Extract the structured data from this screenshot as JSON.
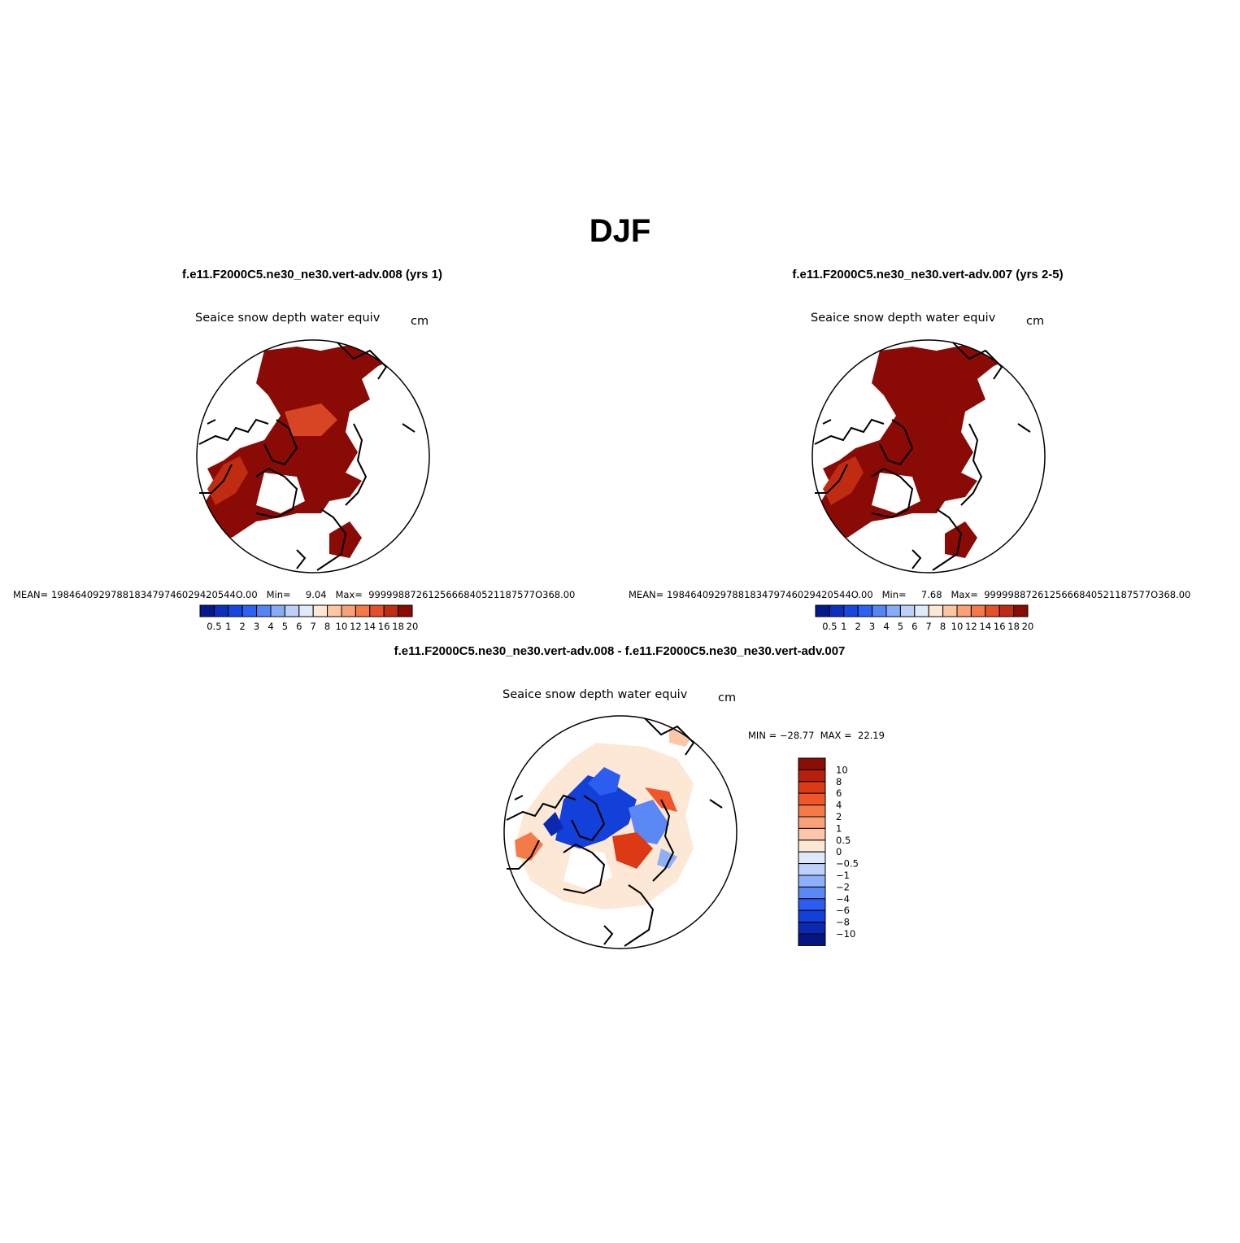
{
  "title": "DJF",
  "panels": [
    {
      "case_title": "f.e11.F2000C5.ne30_ne30.vert-adv.008 (yrs 1)",
      "variable": "Seaice snow depth water equiv",
      "units": "cm",
      "stats": "MEAN= 1984640929788183479746029420544O.00   Min=     9.04   Max=  9999988726125666840521187577O368.00"
    },
    {
      "case_title": "f.e11.F2000C5.ne30_ne30.vert-adv.007 (yrs 2-5)",
      "variable": "Seaice snow depth water equiv",
      "units": "cm",
      "stats": "MEAN= 1984640929788183479746029420544O.00   Min=     7.68   Max=  9999988726125666840521187577O368.00"
    },
    {
      "case_title": "f.e11.F2000C5.ne30_ne30.vert-adv.008 - f.e11.F2000C5.ne30_ne30.vert-adv.007",
      "variable": "Seaice snow depth water equiv",
      "units": "cm",
      "stats": "MIN = −28.77  MAX =  22.19"
    }
  ],
  "colorbars": {
    "absolute": {
      "labels": [
        "0.5",
        "1",
        "2",
        "3",
        "4",
        "5",
        "6",
        "7",
        "8",
        "10",
        "12",
        "14",
        "16",
        "18",
        "20"
      ],
      "colors": [
        "#05198c",
        "#0a30c0",
        "#1448e0",
        "#2a62f2",
        "#5585f5",
        "#88aaf7",
        "#bcd0f8",
        "#e0eafa",
        "#fde8d5",
        "#fcc6a4",
        "#f9a074",
        "#f47848",
        "#e4502a",
        "#c02c12",
        "#8a0a05"
      ]
    },
    "difference": {
      "labels": [
        "10",
        "8",
        "6",
        "4",
        "2",
        "1",
        "0.5",
        "0",
        "−0.5",
        "−1",
        "−2",
        "−4",
        "−6",
        "−8",
        "−10"
      ],
      "colors": [
        "#8b0b05",
        "#b8200d",
        "#dc3a14",
        "#f0562a",
        "#f47a4a",
        "#f9a27a",
        "#fcc6a8",
        "#fde8d6",
        "#dde8fa",
        "#bcd2fb",
        "#8eb0f8",
        "#5a88f4",
        "#2b5ef0",
        "#1240d8",
        "#0a28b0",
        "#041684"
      ]
    }
  }
}
